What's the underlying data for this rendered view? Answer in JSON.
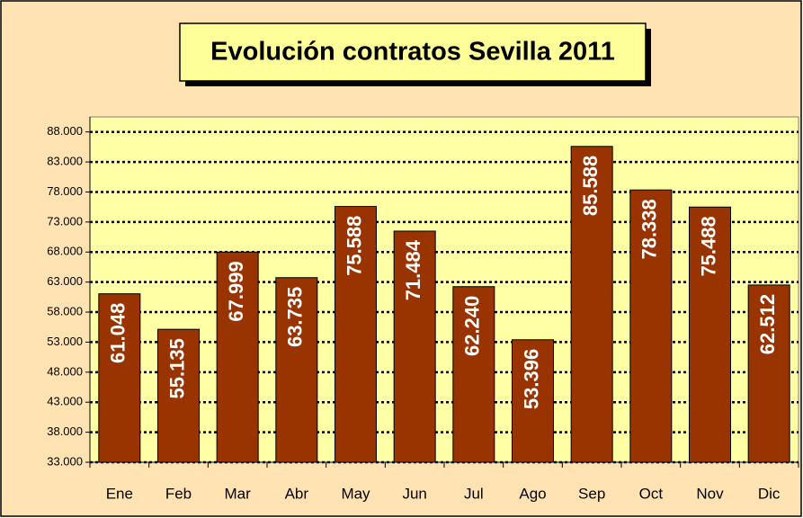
{
  "chart_data": {
    "type": "bar",
    "title": "Evolución contratos Sevilla  2011",
    "categories": [
      "Ene",
      "Feb",
      "Mar",
      "Abr",
      "May",
      "Jun",
      "Jul",
      "Ago",
      "Sep",
      "Oct",
      "Nov",
      "Dic"
    ],
    "values": [
      61048,
      55135,
      67999,
      63735,
      75588,
      71484,
      62240,
      53396,
      85588,
      78338,
      75488,
      62512
    ],
    "value_labels": [
      "61.048",
      "55.135",
      "67.999",
      "63.735",
      "75.588",
      "71.484",
      "62.240",
      "53.396",
      "85.588",
      "78.338",
      "75.488",
      "62.512"
    ],
    "color": "#993300",
    "ylim": [
      33000,
      90500
    ],
    "yticks": [
      {
        "value": 33000,
        "label": "33.000"
      },
      {
        "value": 38000,
        "label": "38.000"
      },
      {
        "value": 43000,
        "label": "43.000"
      },
      {
        "value": 48000,
        "label": "48.000"
      },
      {
        "value": 53000,
        "label": "53.000"
      },
      {
        "value": 58000,
        "label": "58.000"
      },
      {
        "value": 63000,
        "label": "63.000"
      },
      {
        "value": 68000,
        "label": "68.000"
      },
      {
        "value": 73000,
        "label": "73.000"
      },
      {
        "value": 78000,
        "label": "78.000"
      },
      {
        "value": 83000,
        "label": "83.000"
      },
      {
        "value": 88000,
        "label": "88.000"
      }
    ],
    "grid": true
  }
}
